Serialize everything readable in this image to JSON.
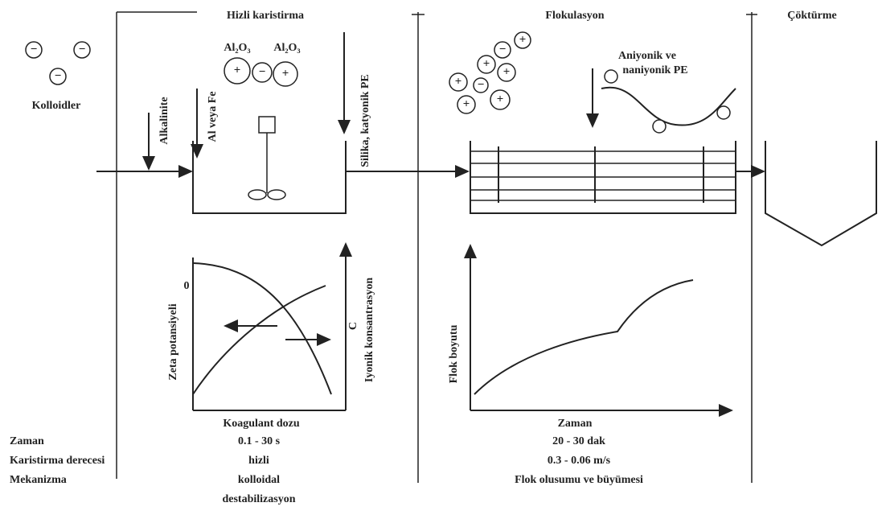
{
  "header": {
    "mixing": "Hizli karistirma",
    "flocculation": "Flokulasyon",
    "settling": "Çöktürme"
  },
  "colloids": {
    "label": "Kolloidler"
  },
  "symbols": {
    "minus": "−",
    "plus": "+"
  },
  "inputs": {
    "alkalinity": "Alkalinite",
    "coagulant": "Al veya Fe",
    "oxide": "Al₂O₃",
    "silica": "Silika, katyonik PE",
    "polymer_line1": "Aniyonik ve",
    "polymer_line2": "naniyonik PE"
  },
  "mixing_chart": {
    "y_label": "Zeta potansiyeli",
    "zero": "0",
    "c_label": "C",
    "y2_label": "Iyonik konsantrasyon",
    "x_label": "Koagulant dozu"
  },
  "floc_chart": {
    "y_label": "Flok boyutu",
    "x_label": "Zaman"
  },
  "table": {
    "row_labels": [
      "Zaman",
      "Karistirma derecesi",
      "Mekanizma"
    ],
    "mixing": [
      "0.1 - 30 s",
      "hizli",
      "kolloidal",
      "destabilizasyon"
    ],
    "flocculation": [
      "20 - 30 dak",
      "0.3 - 0.06  m/s",
      "Flok olusumu ve büyümesi"
    ]
  }
}
